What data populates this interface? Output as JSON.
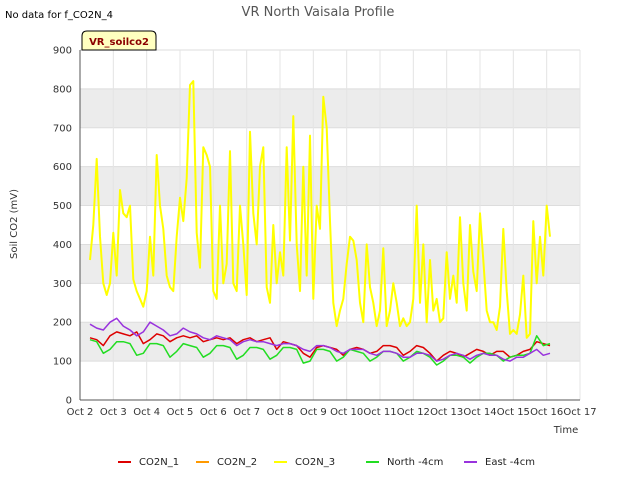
{
  "chart_data": {
    "type": "line",
    "title": "VR North Vaisala Profile",
    "subtitle": "No data for f_CO2N_4",
    "badge": "VR_soilco2",
    "xlabel": "Time",
    "ylabel": "Soil CO2 (mV)",
    "ylim": [
      0,
      900
    ],
    "yticks": [
      0,
      100,
      200,
      300,
      400,
      500,
      600,
      700,
      800,
      900
    ],
    "xlim": [
      2,
      17
    ],
    "xticks": [
      {
        "v": 2,
        "label": "Oct 2"
      },
      {
        "v": 3,
        "label": "Oct 3"
      },
      {
        "v": 4,
        "label": "Oct 4"
      },
      {
        "v": 5,
        "label": "Oct 5"
      },
      {
        "v": 6,
        "label": "Oct 6"
      },
      {
        "v": 7,
        "label": "Oct 7"
      },
      {
        "v": 8,
        "label": "Oct 8"
      },
      {
        "v": 9,
        "label": "Oct 9"
      },
      {
        "v": 10,
        "label": "Oct 10"
      },
      {
        "v": 11,
        "label": "Oct 11"
      },
      {
        "v": 12,
        "label": "Oct 12"
      },
      {
        "v": 13,
        "label": "Oct 13"
      },
      {
        "v": 14,
        "label": "Oct 14"
      },
      {
        "v": 15,
        "label": "Oct 15"
      },
      {
        "v": 16,
        "label": "Oct 16"
      },
      {
        "v": 17,
        "label": "Oct 17"
      }
    ],
    "grid": true,
    "legend": "bottom",
    "series": [
      {
        "name": "CO2N_1",
        "color": "#dd0000",
        "x": [
          2.3,
          2.5,
          2.7,
          2.9,
          3.1,
          3.3,
          3.5,
          3.7,
          3.9,
          4.1,
          4.3,
          4.5,
          4.7,
          4.9,
          5.1,
          5.3,
          5.5,
          5.7,
          5.9,
          6.1,
          6.3,
          6.5,
          6.7,
          6.9,
          7.1,
          7.3,
          7.5,
          7.7,
          7.9,
          8.1,
          8.3,
          8.5,
          8.7,
          8.9,
          9.1,
          9.3,
          9.5,
          9.7,
          9.9,
          10.1,
          10.3,
          10.5,
          10.7,
          10.9,
          11.1,
          11.3,
          11.5,
          11.7,
          11.9,
          12.1,
          12.3,
          12.5,
          12.7,
          12.9,
          13.1,
          13.3,
          13.5,
          13.7,
          13.9,
          14.1,
          14.3,
          14.5,
          14.7,
          14.9,
          15.1,
          15.3,
          15.5,
          15.7,
          15.9,
          16.1
        ],
        "y": [
          160,
          155,
          140,
          165,
          175,
          170,
          165,
          175,
          145,
          155,
          170,
          165,
          150,
          160,
          165,
          160,
          165,
          150,
          155,
          160,
          155,
          160,
          145,
          155,
          160,
          150,
          155,
          160,
          130,
          150,
          145,
          140,
          120,
          110,
          135,
          140,
          135,
          130,
          115,
          130,
          135,
          130,
          120,
          125,
          140,
          140,
          135,
          115,
          125,
          140,
          135,
          120,
          100,
          115,
          125,
          120,
          110,
          120,
          130,
          125,
          115,
          125,
          125,
          110,
          115,
          125,
          130,
          150,
          145,
          140
        ]
      },
      {
        "name": "CO2N_2",
        "color": "#ff9900",
        "x": [],
        "y": []
      },
      {
        "name": "CO2N_3",
        "color": "#ffff00",
        "x": [
          2.3,
          2.4,
          2.5,
          2.6,
          2.7,
          2.8,
          2.9,
          3.0,
          3.1,
          3.2,
          3.3,
          3.4,
          3.5,
          3.6,
          3.7,
          3.8,
          3.9,
          4.0,
          4.1,
          4.2,
          4.3,
          4.4,
          4.5,
          4.6,
          4.7,
          4.8,
          4.9,
          5.0,
          5.1,
          5.2,
          5.3,
          5.4,
          5.5,
          5.6,
          5.7,
          5.8,
          5.9,
          6.0,
          6.1,
          6.2,
          6.3,
          6.4,
          6.5,
          6.6,
          6.7,
          6.8,
          6.9,
          7.0,
          7.1,
          7.2,
          7.3,
          7.4,
          7.5,
          7.6,
          7.7,
          7.8,
          7.9,
          8.0,
          8.1,
          8.2,
          8.3,
          8.4,
          8.5,
          8.6,
          8.7,
          8.8,
          8.9,
          9.0,
          9.1,
          9.2,
          9.3,
          9.4,
          9.5,
          9.6,
          9.7,
          9.8,
          9.9,
          10.0,
          10.1,
          10.2,
          10.3,
          10.4,
          10.5,
          10.6,
          10.7,
          10.8,
          10.9,
          11.0,
          11.1,
          11.2,
          11.3,
          11.4,
          11.5,
          11.6,
          11.7,
          11.8,
          11.9,
          12.0,
          12.1,
          12.2,
          12.3,
          12.4,
          12.5,
          12.6,
          12.7,
          12.8,
          12.9,
          13.0,
          13.1,
          13.2,
          13.3,
          13.4,
          13.5,
          13.6,
          13.7,
          13.8,
          13.9,
          14.0,
          14.1,
          14.2,
          14.3,
          14.4,
          14.5,
          14.6,
          14.7,
          14.8,
          14.9,
          15.0,
          15.1,
          15.2,
          15.3,
          15.4,
          15.5,
          15.6,
          15.7,
          15.8,
          15.9,
          16.0,
          16.1
        ],
        "y": [
          360,
          450,
          620,
          420,
          300,
          270,
          300,
          430,
          320,
          540,
          480,
          470,
          500,
          310,
          280,
          260,
          240,
          280,
          420,
          320,
          630,
          500,
          440,
          320,
          290,
          280,
          420,
          520,
          460,
          570,
          810,
          820,
          430,
          340,
          650,
          630,
          600,
          280,
          260,
          500,
          300,
          350,
          640,
          300,
          280,
          500,
          400,
          270,
          690,
          480,
          400,
          600,
          650,
          290,
          250,
          450,
          300,
          380,
          320,
          650,
          410,
          730,
          400,
          280,
          600,
          320,
          680,
          260,
          500,
          440,
          780,
          700,
          460,
          250,
          190,
          230,
          260,
          350,
          420,
          410,
          360,
          250,
          200,
          400,
          290,
          250,
          190,
          230,
          390,
          190,
          230,
          300,
          250,
          190,
          210,
          190,
          200,
          260,
          500,
          250,
          400,
          200,
          360,
          230,
          260,
          200,
          210,
          380,
          260,
          320,
          250,
          470,
          300,
          230,
          450,
          330,
          280,
          480,
          360,
          230,
          200,
          200,
          180,
          240,
          440,
          280,
          170,
          180,
          170,
          220,
          320,
          160,
          170,
          460,
          300,
          420,
          320,
          500,
          420
        ]
      },
      {
        "name": "North -4cm",
        "color": "#22dd22",
        "x": [
          2.3,
          2.5,
          2.7,
          2.9,
          3.1,
          3.3,
          3.5,
          3.7,
          3.9,
          4.1,
          4.3,
          4.5,
          4.7,
          4.9,
          5.1,
          5.3,
          5.5,
          5.7,
          5.9,
          6.1,
          6.3,
          6.5,
          6.7,
          6.9,
          7.1,
          7.3,
          7.5,
          7.7,
          7.9,
          8.1,
          8.3,
          8.5,
          8.7,
          8.9,
          9.1,
          9.3,
          9.5,
          9.7,
          9.9,
          10.1,
          10.3,
          10.5,
          10.7,
          10.9,
          11.1,
          11.3,
          11.5,
          11.7,
          11.9,
          12.1,
          12.3,
          12.5,
          12.7,
          12.9,
          13.1,
          13.3,
          13.5,
          13.7,
          13.9,
          14.1,
          14.3,
          14.5,
          14.7,
          14.9,
          15.1,
          15.3,
          15.5,
          15.7,
          15.9,
          16.1
        ],
        "y": [
          155,
          150,
          120,
          130,
          150,
          150,
          145,
          115,
          120,
          145,
          145,
          140,
          110,
          125,
          145,
          140,
          135,
          110,
          120,
          140,
          140,
          135,
          105,
          115,
          135,
          135,
          130,
          105,
          115,
          135,
          135,
          130,
          95,
          100,
          130,
          130,
          125,
          100,
          110,
          130,
          125,
          120,
          100,
          110,
          125,
          125,
          120,
          100,
          110,
          125,
          120,
          110,
          90,
          100,
          115,
          115,
          110,
          95,
          110,
          120,
          120,
          115,
          100,
          110,
          115,
          115,
          120,
          165,
          140,
          145
        ]
      },
      {
        "name": "East -4cm",
        "color": "#9933dd",
        "x": [
          2.3,
          2.5,
          2.7,
          2.9,
          3.1,
          3.3,
          3.5,
          3.7,
          3.9,
          4.1,
          4.3,
          4.5,
          4.7,
          4.9,
          5.1,
          5.3,
          5.5,
          5.7,
          5.9,
          6.1,
          6.3,
          6.5,
          6.7,
          6.9,
          7.1,
          7.3,
          7.5,
          7.7,
          7.9,
          8.1,
          8.3,
          8.5,
          8.7,
          8.9,
          9.1,
          9.3,
          9.5,
          9.7,
          9.9,
          10.1,
          10.3,
          10.5,
          10.7,
          10.9,
          11.1,
          11.3,
          11.5,
          11.7,
          11.9,
          12.1,
          12.3,
          12.5,
          12.7,
          12.9,
          13.1,
          13.3,
          13.5,
          13.7,
          13.9,
          14.1,
          14.3,
          14.5,
          14.7,
          14.9,
          15.1,
          15.3,
          15.5,
          15.7,
          15.9,
          16.1
        ],
        "y": [
          195,
          185,
          180,
          200,
          210,
          190,
          180,
          165,
          175,
          200,
          190,
          180,
          165,
          170,
          185,
          175,
          170,
          160,
          155,
          165,
          160,
          155,
          140,
          150,
          155,
          150,
          150,
          145,
          140,
          145,
          145,
          140,
          130,
          125,
          140,
          140,
          135,
          125,
          120,
          130,
          130,
          130,
          120,
          115,
          125,
          125,
          120,
          110,
          110,
          120,
          120,
          115,
          100,
          105,
          115,
          120,
          115,
          105,
          115,
          120,
          115,
          115,
          105,
          100,
          110,
          110,
          120,
          130,
          115,
          120
        ]
      }
    ]
  }
}
